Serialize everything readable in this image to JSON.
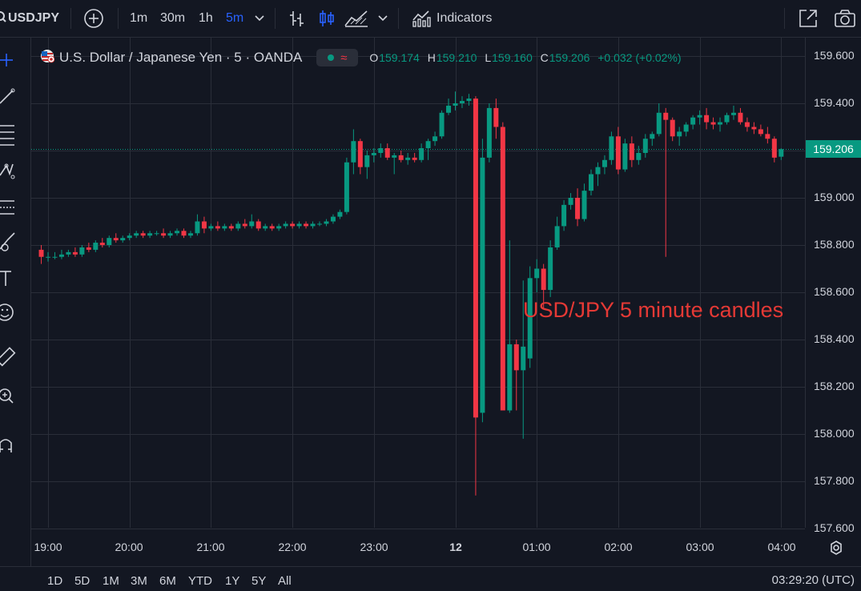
{
  "toolbar": {
    "symbol": "USDJPY",
    "intervals": [
      "1m",
      "30m",
      "1h",
      "5m"
    ],
    "active_interval": "5m",
    "indicators_label": "Indicators",
    "accent": "#2962ff"
  },
  "legend": {
    "title": "U.S. Dollar / Japanese Yen · 5 · OANDA",
    "open_label": "O",
    "open": "159.174",
    "high_label": "H",
    "high": "159.210",
    "low_label": "L",
    "low": "159.160",
    "close_label": "C",
    "close": "159.206",
    "change": "+0.032 (+0.02%)"
  },
  "annotation": "USD/JPY 5 minute candles",
  "price_axis": {
    "ticks": [
      "159.600",
      "159.400",
      "159.206",
      "159.000",
      "158.800",
      "158.600",
      "158.400",
      "158.200",
      "158.000",
      "157.800",
      "157.600"
    ],
    "last_price": "159.206",
    "last_price_color": "#089981"
  },
  "time_axis": {
    "ticks": [
      "19:00",
      "20:00",
      "21:00",
      "22:00",
      "23:00",
      "12",
      "01:00",
      "02:00",
      "03:00",
      "04:00"
    ]
  },
  "range_buttons": [
    "1D",
    "5D",
    "1M",
    "3M",
    "6M",
    "YTD",
    "1Y",
    "5Y",
    "All"
  ],
  "clock": "03:29:20 (UTC)",
  "colors": {
    "up": "#089981",
    "down": "#f23645",
    "background": "#131722",
    "grid": "#2a2e39"
  },
  "chart_data": {
    "type": "candlestick",
    "interval_minutes": 5,
    "start_time": "18:55",
    "x_ticks": [
      "19:00",
      "20:00",
      "21:00",
      "22:00",
      "23:00",
      "12",
      "01:00",
      "02:00",
      "03:00",
      "04:00"
    ],
    "ylim": [
      157.6,
      159.6
    ],
    "grid": true,
    "last_price": 159.206,
    "candles": [
      {
        "o": 158.78,
        "h": 158.8,
        "l": 158.72,
        "c": 158.75
      },
      {
        "o": 158.75,
        "h": 158.77,
        "l": 158.73,
        "c": 158.75
      },
      {
        "o": 158.75,
        "h": 158.77,
        "l": 158.74,
        "c": 158.75
      },
      {
        "o": 158.75,
        "h": 158.78,
        "l": 158.74,
        "c": 158.76
      },
      {
        "o": 158.76,
        "h": 158.78,
        "l": 158.75,
        "c": 158.77
      },
      {
        "o": 158.77,
        "h": 158.79,
        "l": 158.75,
        "c": 158.76
      },
      {
        "o": 158.76,
        "h": 158.8,
        "l": 158.75,
        "c": 158.79
      },
      {
        "o": 158.79,
        "h": 158.81,
        "l": 158.77,
        "c": 158.78
      },
      {
        "o": 158.78,
        "h": 158.82,
        "l": 158.77,
        "c": 158.81
      },
      {
        "o": 158.81,
        "h": 158.83,
        "l": 158.79,
        "c": 158.8
      },
      {
        "o": 158.8,
        "h": 158.84,
        "l": 158.79,
        "c": 158.83
      },
      {
        "o": 158.83,
        "h": 158.85,
        "l": 158.81,
        "c": 158.82
      },
      {
        "o": 158.82,
        "h": 158.84,
        "l": 158.81,
        "c": 158.83
      },
      {
        "o": 158.83,
        "h": 158.85,
        "l": 158.82,
        "c": 158.84
      },
      {
        "o": 158.84,
        "h": 158.86,
        "l": 158.83,
        "c": 158.85
      },
      {
        "o": 158.85,
        "h": 158.86,
        "l": 158.83,
        "c": 158.84
      },
      {
        "o": 158.84,
        "h": 158.86,
        "l": 158.83,
        "c": 158.85
      },
      {
        "o": 158.85,
        "h": 158.86,
        "l": 158.84,
        "c": 158.85
      },
      {
        "o": 158.85,
        "h": 158.87,
        "l": 158.83,
        "c": 158.84
      },
      {
        "o": 158.84,
        "h": 158.86,
        "l": 158.83,
        "c": 158.85
      },
      {
        "o": 158.85,
        "h": 158.87,
        "l": 158.84,
        "c": 158.86
      },
      {
        "o": 158.86,
        "h": 158.87,
        "l": 158.83,
        "c": 158.84
      },
      {
        "o": 158.84,
        "h": 158.86,
        "l": 158.83,
        "c": 158.85
      },
      {
        "o": 158.85,
        "h": 158.93,
        "l": 158.84,
        "c": 158.9
      },
      {
        "o": 158.9,
        "h": 158.92,
        "l": 158.85,
        "c": 158.87
      },
      {
        "o": 158.87,
        "h": 158.89,
        "l": 158.86,
        "c": 158.88
      },
      {
        "o": 158.88,
        "h": 158.9,
        "l": 158.86,
        "c": 158.87
      },
      {
        "o": 158.87,
        "h": 158.89,
        "l": 158.86,
        "c": 158.88
      },
      {
        "o": 158.88,
        "h": 158.89,
        "l": 158.86,
        "c": 158.87
      },
      {
        "o": 158.87,
        "h": 158.9,
        "l": 158.86,
        "c": 158.89
      },
      {
        "o": 158.89,
        "h": 158.91,
        "l": 158.87,
        "c": 158.88
      },
      {
        "o": 158.88,
        "h": 158.93,
        "l": 158.87,
        "c": 158.9
      },
      {
        "o": 158.9,
        "h": 158.91,
        "l": 158.86,
        "c": 158.87
      },
      {
        "o": 158.87,
        "h": 158.89,
        "l": 158.86,
        "c": 158.88
      },
      {
        "o": 158.88,
        "h": 158.89,
        "l": 158.86,
        "c": 158.87
      },
      {
        "o": 158.87,
        "h": 158.89,
        "l": 158.86,
        "c": 158.88
      },
      {
        "o": 158.88,
        "h": 158.9,
        "l": 158.87,
        "c": 158.89
      },
      {
        "o": 158.89,
        "h": 158.9,
        "l": 158.87,
        "c": 158.88
      },
      {
        "o": 158.88,
        "h": 158.9,
        "l": 158.87,
        "c": 158.89
      },
      {
        "o": 158.89,
        "h": 158.9,
        "l": 158.87,
        "c": 158.88
      },
      {
        "o": 158.88,
        "h": 158.9,
        "l": 158.87,
        "c": 158.89
      },
      {
        "o": 158.89,
        "h": 158.9,
        "l": 158.88,
        "c": 158.89
      },
      {
        "o": 158.89,
        "h": 158.91,
        "l": 158.88,
        "c": 158.9
      },
      {
        "o": 158.9,
        "h": 158.93,
        "l": 158.89,
        "c": 158.92
      },
      {
        "o": 158.92,
        "h": 158.95,
        "l": 158.91,
        "c": 158.94
      },
      {
        "o": 158.94,
        "h": 159.17,
        "l": 158.93,
        "c": 159.15
      },
      {
        "o": 159.15,
        "h": 159.29,
        "l": 159.1,
        "c": 159.24
      },
      {
        "o": 159.24,
        "h": 159.25,
        "l": 159.1,
        "c": 159.13
      },
      {
        "o": 159.13,
        "h": 159.2,
        "l": 159.08,
        "c": 159.18
      },
      {
        "o": 159.18,
        "h": 159.21,
        "l": 159.15,
        "c": 159.19
      },
      {
        "o": 159.19,
        "h": 159.23,
        "l": 159.17,
        "c": 159.21
      },
      {
        "o": 159.21,
        "h": 159.23,
        "l": 159.16,
        "c": 159.17
      },
      {
        "o": 159.17,
        "h": 159.19,
        "l": 159.1,
        "c": 159.18
      },
      {
        "o": 159.18,
        "h": 159.2,
        "l": 159.15,
        "c": 159.16
      },
      {
        "o": 159.16,
        "h": 159.19,
        "l": 159.14,
        "c": 159.17
      },
      {
        "o": 159.17,
        "h": 159.19,
        "l": 159.15,
        "c": 159.16
      },
      {
        "o": 159.16,
        "h": 159.23,
        "l": 159.15,
        "c": 159.21
      },
      {
        "o": 159.21,
        "h": 159.25,
        "l": 159.16,
        "c": 159.24
      },
      {
        "o": 159.24,
        "h": 159.28,
        "l": 159.22,
        "c": 159.26
      },
      {
        "o": 159.26,
        "h": 159.37,
        "l": 159.25,
        "c": 159.36
      },
      {
        "o": 159.36,
        "h": 159.42,
        "l": 159.35,
        "c": 159.39
      },
      {
        "o": 159.39,
        "h": 159.45,
        "l": 159.37,
        "c": 159.4
      },
      {
        "o": 159.4,
        "h": 159.43,
        "l": 159.38,
        "c": 159.41
      },
      {
        "o": 159.41,
        "h": 159.44,
        "l": 159.39,
        "c": 159.42
      },
      {
        "o": 159.42,
        "h": 159.43,
        "l": 157.74,
        "c": 158.07
      },
      {
        "o": 158.09,
        "h": 159.25,
        "l": 158.05,
        "c": 159.17
      },
      {
        "o": 159.17,
        "h": 159.4,
        "l": 159.15,
        "c": 159.38
      },
      {
        "o": 159.38,
        "h": 159.42,
        "l": 159.25,
        "c": 159.3
      },
      {
        "o": 159.3,
        "h": 159.32,
        "l": 158.1,
        "c": 158.1
      },
      {
        "o": 158.1,
        "h": 158.82,
        "l": 158.09,
        "c": 158.38
      },
      {
        "o": 158.38,
        "h": 158.4,
        "l": 158.1,
        "c": 158.27
      },
      {
        "o": 158.27,
        "h": 158.65,
        "l": 157.98,
        "c": 158.37
      },
      {
        "o": 158.32,
        "h": 158.71,
        "l": 158.28,
        "c": 158.66
      },
      {
        "o": 158.66,
        "h": 158.74,
        "l": 158.6,
        "c": 158.7
      },
      {
        "o": 158.7,
        "h": 158.72,
        "l": 158.53,
        "c": 158.61
      },
      {
        "o": 158.61,
        "h": 158.82,
        "l": 158.58,
        "c": 158.79
      },
      {
        "o": 158.79,
        "h": 158.92,
        "l": 158.78,
        "c": 158.88
      },
      {
        "o": 158.88,
        "h": 158.99,
        "l": 158.86,
        "c": 158.97
      },
      {
        "o": 158.97,
        "h": 159.02,
        "l": 158.95,
        "c": 159.0
      },
      {
        "o": 159.0,
        "h": 159.04,
        "l": 158.88,
        "c": 158.91
      },
      {
        "o": 158.91,
        "h": 159.06,
        "l": 158.9,
        "c": 159.03
      },
      {
        "o": 159.03,
        "h": 159.12,
        "l": 159.01,
        "c": 159.1
      },
      {
        "o": 159.1,
        "h": 159.15,
        "l": 159.05,
        "c": 159.13
      },
      {
        "o": 159.13,
        "h": 159.18,
        "l": 159.1,
        "c": 159.16
      },
      {
        "o": 159.16,
        "h": 159.28,
        "l": 159.14,
        "c": 159.26
      },
      {
        "o": 159.26,
        "h": 159.3,
        "l": 159.1,
        "c": 159.12
      },
      {
        "o": 159.12,
        "h": 159.25,
        "l": 159.11,
        "c": 159.23
      },
      {
        "o": 159.23,
        "h": 159.26,
        "l": 159.13,
        "c": 159.16
      },
      {
        "o": 159.16,
        "h": 159.22,
        "l": 159.14,
        "c": 159.19
      },
      {
        "o": 159.19,
        "h": 159.27,
        "l": 159.17,
        "c": 159.25
      },
      {
        "o": 159.25,
        "h": 159.28,
        "l": 159.22,
        "c": 159.27
      },
      {
        "o": 159.27,
        "h": 159.4,
        "l": 159.26,
        "c": 159.36
      },
      {
        "o": 159.36,
        "h": 159.38,
        "l": 158.75,
        "c": 159.33
      },
      {
        "o": 159.33,
        "h": 159.34,
        "l": 159.24,
        "c": 159.26
      },
      {
        "o": 159.26,
        "h": 159.3,
        "l": 159.22,
        "c": 159.28
      },
      {
        "o": 159.28,
        "h": 159.32,
        "l": 159.26,
        "c": 159.31
      },
      {
        "o": 159.31,
        "h": 159.35,
        "l": 159.29,
        "c": 159.34
      },
      {
        "o": 159.34,
        "h": 159.37,
        "l": 159.31,
        "c": 159.35
      },
      {
        "o": 159.35,
        "h": 159.38,
        "l": 159.29,
        "c": 159.32
      },
      {
        "o": 159.32,
        "h": 159.34,
        "l": 159.29,
        "c": 159.31
      },
      {
        "o": 159.31,
        "h": 159.34,
        "l": 159.28,
        "c": 159.32
      },
      {
        "o": 159.32,
        "h": 159.36,
        "l": 159.31,
        "c": 159.35
      },
      {
        "o": 159.35,
        "h": 159.39,
        "l": 159.33,
        "c": 159.36
      },
      {
        "o": 159.36,
        "h": 159.38,
        "l": 159.31,
        "c": 159.32
      },
      {
        "o": 159.32,
        "h": 159.34,
        "l": 159.28,
        "c": 159.3
      },
      {
        "o": 159.3,
        "h": 159.32,
        "l": 159.27,
        "c": 159.29
      },
      {
        "o": 159.29,
        "h": 159.31,
        "l": 159.26,
        "c": 159.27
      },
      {
        "o": 159.27,
        "h": 159.3,
        "l": 159.23,
        "c": 159.25
      },
      {
        "o": 159.25,
        "h": 159.26,
        "l": 159.15,
        "c": 159.17
      },
      {
        "o": 159.174,
        "h": 159.21,
        "l": 159.16,
        "c": 159.206
      }
    ]
  }
}
